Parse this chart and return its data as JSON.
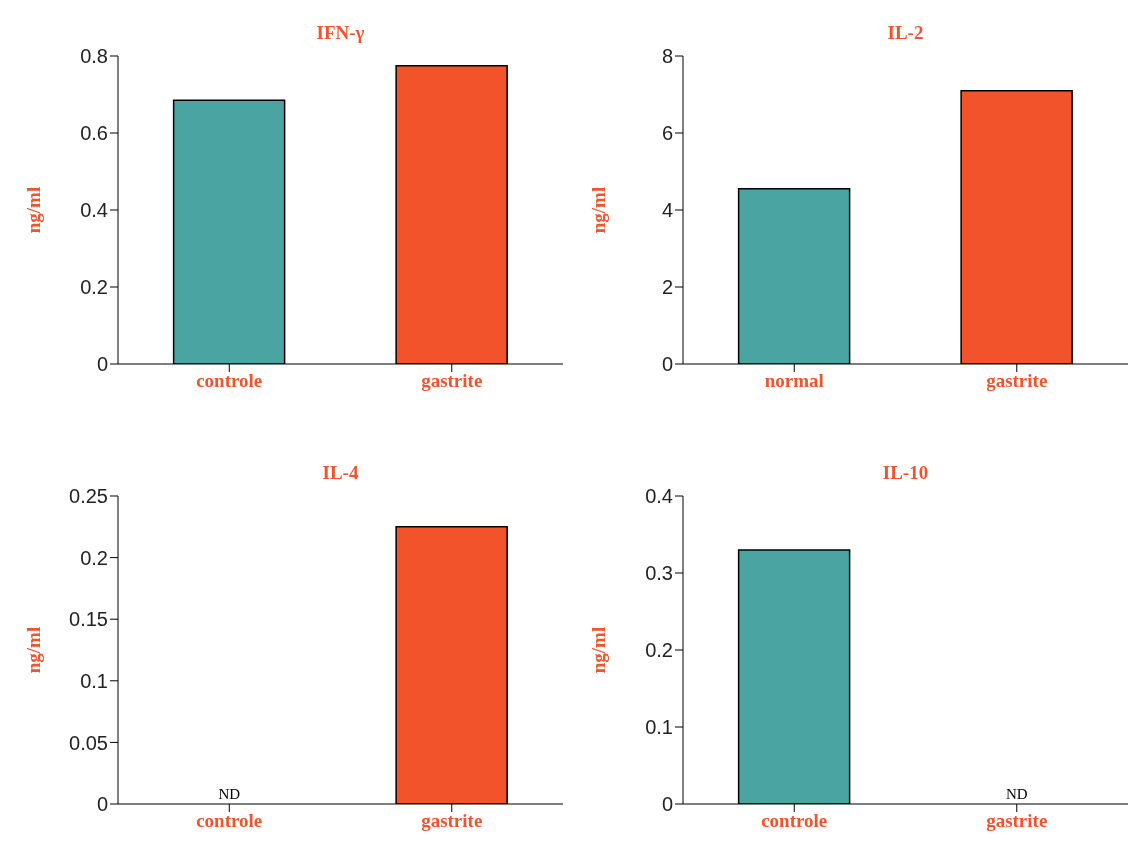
{
  "chart_data": [
    {
      "type": "bar",
      "title": "IFN-γ",
      "ylabel": "ng/ml",
      "categories": [
        "controle",
        "gastrite"
      ],
      "values": [
        0.685,
        0.775
      ],
      "colors": [
        "#4aa5a2",
        "#f2532b"
      ],
      "ylim": [
        0,
        0.8
      ],
      "yticks": [
        0,
        0.2,
        0.4,
        0.6,
        0.8
      ],
      "grid": false,
      "legend": false
    },
    {
      "type": "bar",
      "title": "IL-2",
      "ylabel": "ng/ml",
      "categories": [
        "normal",
        "gastrite"
      ],
      "values": [
        4.55,
        7.1
      ],
      "colors": [
        "#4aa5a2",
        "#f2532b"
      ],
      "ylim": [
        0,
        8
      ],
      "yticks": [
        0,
        2,
        4,
        6,
        8
      ],
      "grid": false,
      "legend": false
    },
    {
      "type": "bar",
      "title": "IL-4",
      "ylabel": "ng/ml",
      "categories": [
        "controle",
        "gastrite"
      ],
      "values": [
        null,
        0.225
      ],
      "colors": [
        "#4aa5a2",
        "#f2532b"
      ],
      "ylim": [
        0,
        0.25
      ],
      "yticks": [
        0,
        0.05,
        0.1,
        0.15,
        0.2,
        0.25
      ],
      "grid": false,
      "legend": false,
      "annotations": [
        "ND"
      ]
    },
    {
      "type": "bar",
      "title": "IL-10",
      "ylabel": "ng/ml",
      "categories": [
        "controle",
        "gastrite"
      ],
      "values": [
        0.33,
        null
      ],
      "colors": [
        "#4aa5a2",
        "#f2532b"
      ],
      "ylim": [
        0,
        0.4
      ],
      "yticks": [
        0,
        0.1,
        0.2,
        0.3,
        0.4
      ],
      "grid": false,
      "legend": false,
      "annotations": [
        "ND"
      ]
    }
  ]
}
